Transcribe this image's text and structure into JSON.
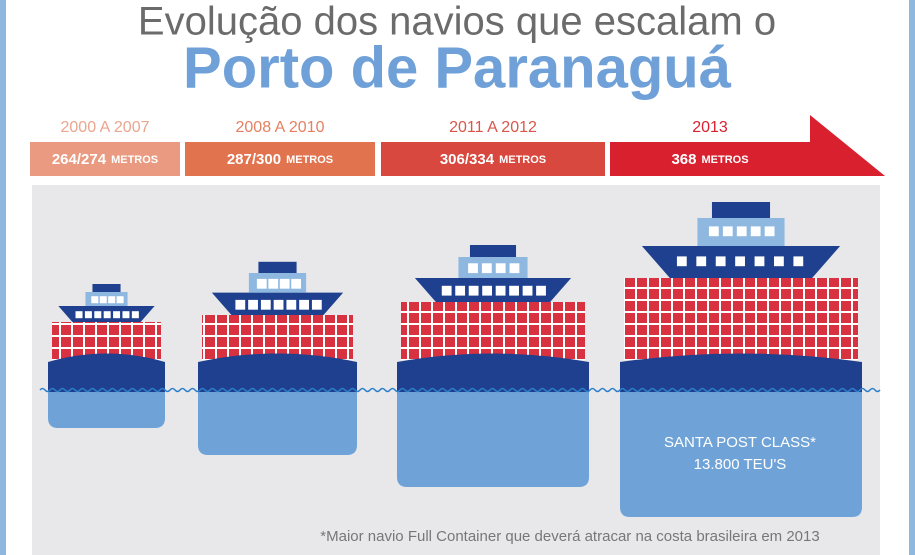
{
  "header": {
    "title_line1": "Evolução dos navios que escalam o",
    "title_line2": "Porto de Paranaguá"
  },
  "timeline": [
    {
      "period": "2000 A 2007",
      "length": "264/274",
      "unit": "METROS"
    },
    {
      "period": "2008 A 2010",
      "length": "287/300",
      "unit": "METROS"
    },
    {
      "period": "2011 A 2012",
      "length": "306/334",
      "unit": "METROS"
    },
    {
      "period": "2013",
      "length": "368",
      "unit": "METROS"
    }
  ],
  "largest_ship": {
    "name": "SANTA POST CLASS*",
    "capacity": "13.800 TEU'S"
  },
  "footnote": "*Maior navio Full Container que deverá atracar na costa brasileira em 2013"
}
